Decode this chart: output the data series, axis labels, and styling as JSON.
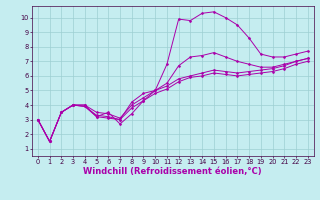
{
  "xlabel": "Windchill (Refroidissement éolien,°C)",
  "xlim": [
    -0.5,
    23.5
  ],
  "ylim": [
    0.5,
    10.8
  ],
  "bg_color": "#c5edf0",
  "grid_color": "#9ecfd2",
  "line_color": "#aa00aa",
  "lines": [
    {
      "x": [
        0,
        1,
        2,
        3,
        4,
        5,
        6,
        7,
        8,
        9,
        10,
        11,
        12,
        13,
        14,
        15,
        16,
        17,
        18,
        19,
        20,
        21,
        22,
        23
      ],
      "y": [
        3.0,
        1.5,
        3.5,
        4.0,
        4.0,
        3.2,
        3.5,
        2.7,
        3.4,
        4.3,
        5.0,
        6.8,
        9.9,
        9.8,
        10.3,
        10.4,
        10.0,
        9.5,
        8.6,
        7.5,
        7.3,
        7.3,
        7.5,
        7.7
      ]
    },
    {
      "x": [
        0,
        1,
        2,
        3,
        4,
        5,
        6,
        7,
        8,
        9,
        10,
        11,
        12,
        13,
        14,
        15,
        16,
        17,
        18,
        19,
        20,
        21,
        22,
        23
      ],
      "y": [
        3.0,
        1.5,
        3.5,
        4.0,
        3.9,
        3.2,
        3.1,
        3.0,
        4.2,
        4.8,
        5.0,
        5.5,
        6.7,
        7.3,
        7.4,
        7.6,
        7.3,
        7.0,
        6.8,
        6.6,
        6.6,
        6.8,
        7.0,
        7.2
      ]
    },
    {
      "x": [
        0,
        1,
        2,
        3,
        4,
        5,
        6,
        7,
        8,
        9,
        10,
        11,
        12,
        13,
        14,
        15,
        16,
        17,
        18,
        19,
        20,
        21,
        22,
        23
      ],
      "y": [
        3.0,
        1.5,
        3.5,
        4.0,
        4.0,
        3.5,
        3.4,
        3.1,
        4.0,
        4.5,
        5.0,
        5.3,
        5.8,
        6.0,
        6.2,
        6.4,
        6.3,
        6.2,
        6.3,
        6.4,
        6.5,
        6.7,
        7.0,
        7.2
      ]
    },
    {
      "x": [
        0,
        1,
        2,
        3,
        4,
        5,
        6,
        7,
        8,
        9,
        10,
        11,
        12,
        13,
        14,
        15,
        16,
        17,
        18,
        19,
        20,
        21,
        22,
        23
      ],
      "y": [
        3.0,
        1.5,
        3.5,
        4.0,
        3.9,
        3.3,
        3.2,
        3.0,
        3.8,
        4.3,
        4.8,
        5.1,
        5.6,
        5.9,
        6.0,
        6.2,
        6.1,
        6.0,
        6.1,
        6.2,
        6.3,
        6.5,
        6.8,
        7.0
      ]
    }
  ],
  "xticks": [
    0,
    1,
    2,
    3,
    4,
    5,
    6,
    7,
    8,
    9,
    10,
    11,
    12,
    13,
    14,
    15,
    16,
    17,
    18,
    19,
    20,
    21,
    22,
    23
  ],
  "yticks": [
    1,
    2,
    3,
    4,
    5,
    6,
    7,
    8,
    9,
    10
  ],
  "tick_fontsize": 4.8,
  "xlabel_fontsize": 6.0
}
